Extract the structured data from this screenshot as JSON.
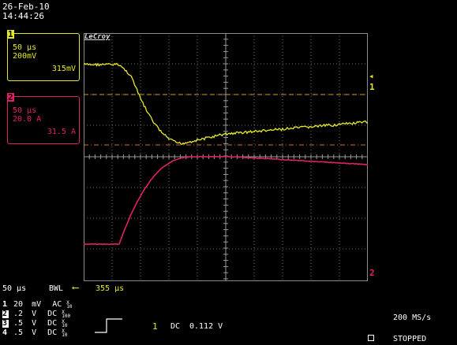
{
  "header": {
    "date": "26-Feb-10",
    "time": "14:44:26"
  },
  "brand": "LeCroy",
  "channel1": {
    "number": "1",
    "timebase": "50 µs",
    "scale": "200mV",
    "value": "315mV",
    "color": "#e8e82a",
    "marker": "1",
    "marker_arrow": "◂"
  },
  "channel2": {
    "number": "2",
    "timebase": "50 µs",
    "scale": "20.0 A",
    "value": "31.5 A",
    "color": "#e0206a",
    "marker": "2"
  },
  "footer": {
    "timebase": "50 µs",
    "bwl": "BWL",
    "delay_arrow": "⟵",
    "delay": "355 µs",
    "channels": [
      {
        "n": "1",
        "volts": "20",
        "unit": "mV",
        "coupling": "AC",
        "probe_top": "X",
        "probe_bot": "10"
      },
      {
        "n": "2",
        "volts": ".2",
        "unit": "V",
        "coupling": "DC",
        "probe_top": "X",
        "probe_bot": "100"
      },
      {
        "n": "3",
        "volts": ".5",
        "unit": "V",
        "coupling": "DC",
        "probe_top": "X",
        "probe_bot": "10"
      },
      {
        "n": "4",
        "volts": ".5",
        "unit": "V",
        "coupling": "DC",
        "probe_top": "X",
        "probe_bot": "10"
      }
    ],
    "trigger_source": "1",
    "trigger_coupling": "DC",
    "trigger_level": "0.112 V",
    "sample_rate": "200 MS/s",
    "status": "STOPPED"
  }
}
